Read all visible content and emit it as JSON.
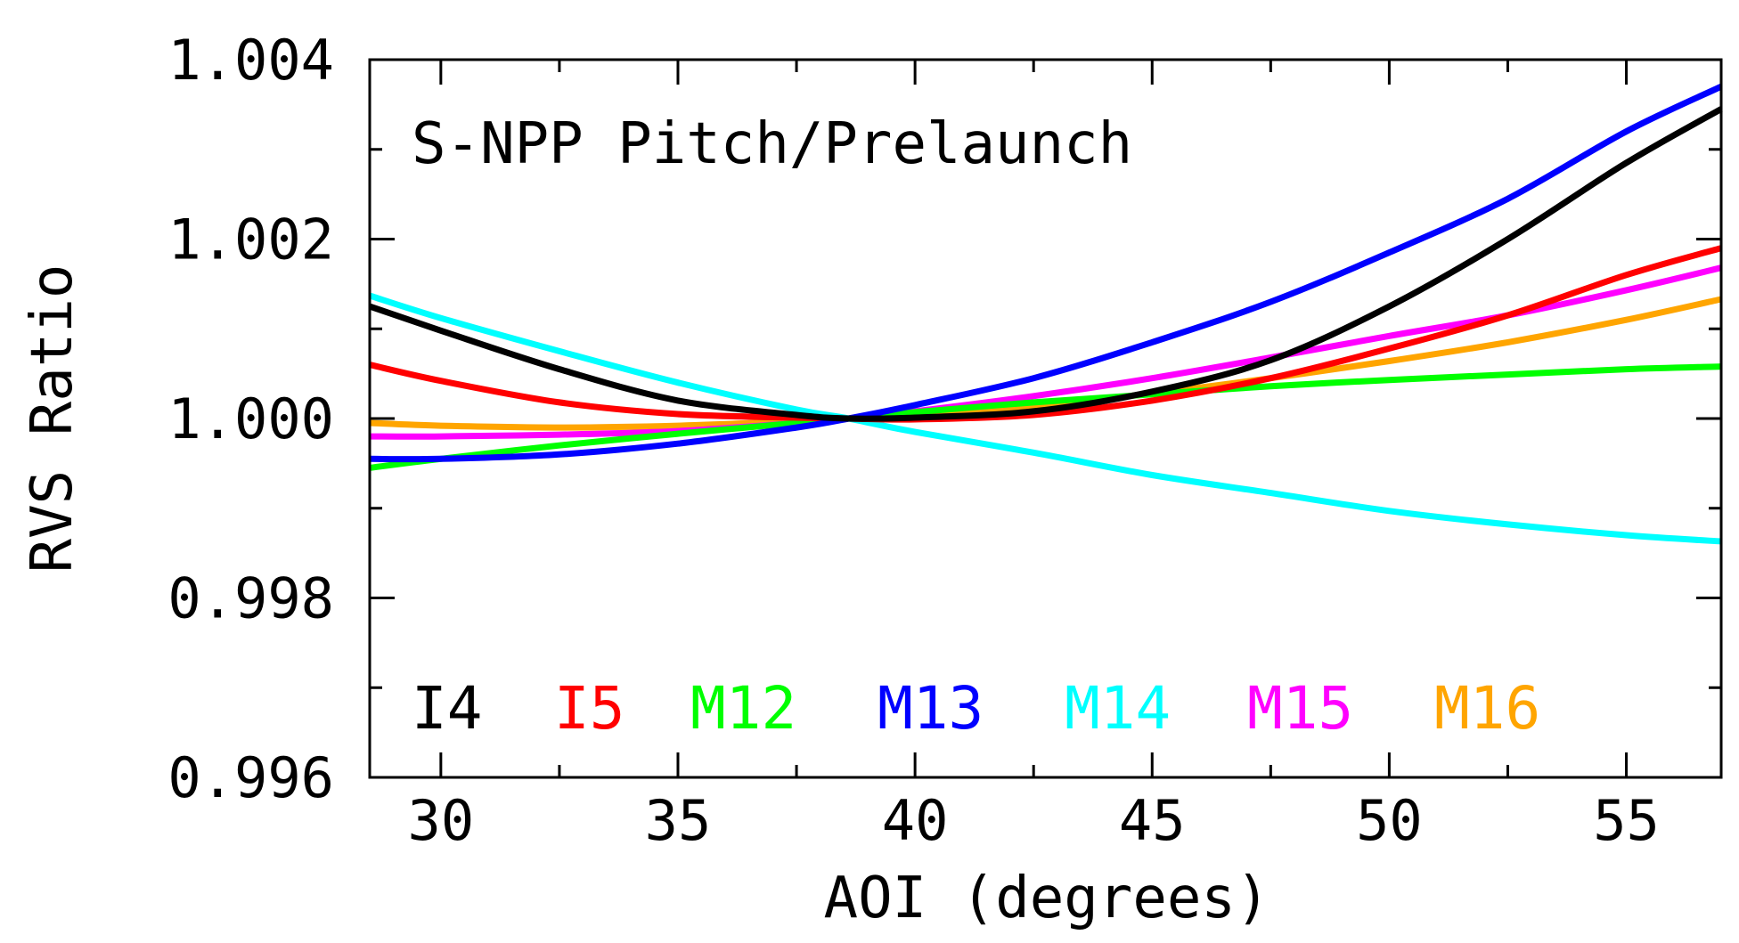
{
  "chart_data": {
    "type": "line",
    "title": "",
    "annotation": "S-NPP Pitch/Prelaunch",
    "xlabel": "AOI (degrees)",
    "ylabel": "RVS Ratio",
    "xlim": [
      28.5,
      57.0
    ],
    "ylim": [
      0.996,
      1.004
    ],
    "xticks": [
      30,
      35,
      40,
      45,
      50,
      55
    ],
    "xtick_labels": [
      "30",
      "35",
      "40",
      "45",
      "50",
      "55"
    ],
    "yticks": [
      0.996,
      0.998,
      1.0,
      1.002,
      1.004
    ],
    "ytick_labels": [
      "0.996",
      "0.998",
      "1.000",
      "1.002",
      "1.004"
    ],
    "grid": false,
    "legend_position": "bottom-left",
    "x": [
      28.5,
      30,
      32.5,
      35,
      37.5,
      38.6,
      40,
      42.5,
      45,
      47.5,
      50,
      52.5,
      55,
      57
    ],
    "series": [
      {
        "name": "I4",
        "color": "#000000",
        "values": [
          1.00125,
          1.00098,
          1.00055,
          1.0002,
          1.00004,
          1.0,
          1.00001,
          1.00008,
          1.0003,
          1.00065,
          1.00125,
          1.002,
          1.00285,
          1.00345
        ]
      },
      {
        "name": "I5",
        "color": "#ff0000",
        "values": [
          1.0006,
          1.00042,
          1.00018,
          1.00005,
          1.00001,
          1.0,
          0.99999,
          1.00004,
          1.0002,
          1.00045,
          1.00078,
          1.00115,
          1.0016,
          1.0019
        ]
      },
      {
        "name": "M12",
        "color": "#00ff00",
        "values": [
          0.99945,
          0.99955,
          0.9997,
          0.99983,
          0.99995,
          1.0,
          1.00007,
          1.00018,
          1.00027,
          1.00036,
          1.00043,
          1.00049,
          1.00055,
          1.00058
        ]
      },
      {
        "name": "M13",
        "color": "#0000ff",
        "values": [
          0.99955,
          0.99955,
          0.9996,
          0.99972,
          0.9999,
          1.0,
          1.00015,
          1.00045,
          1.00085,
          1.0013,
          1.00185,
          1.00245,
          1.0032,
          1.0037
        ]
      },
      {
        "name": "M14",
        "color": "#00ffff",
        "values": [
          1.00137,
          1.00112,
          1.00075,
          1.0004,
          1.0001,
          1.0,
          0.99985,
          0.99962,
          0.99937,
          0.99917,
          0.99897,
          0.99882,
          0.9987,
          0.99863
        ]
      },
      {
        "name": "M15",
        "color": "#ff00ff",
        "values": [
          0.9998,
          0.9998,
          0.99982,
          0.99986,
          0.99995,
          1.0,
          1.00008,
          1.00025,
          1.00045,
          1.00068,
          1.00092,
          1.00115,
          1.00143,
          1.00168
        ]
      },
      {
        "name": "M16",
        "color": "#ffa500",
        "values": [
          0.99995,
          0.99992,
          0.9999,
          0.99992,
          0.99997,
          1.0,
          1.00005,
          1.00014,
          1.00028,
          1.00045,
          1.00064,
          1.00085,
          1.0011,
          1.00133
        ]
      }
    ]
  }
}
